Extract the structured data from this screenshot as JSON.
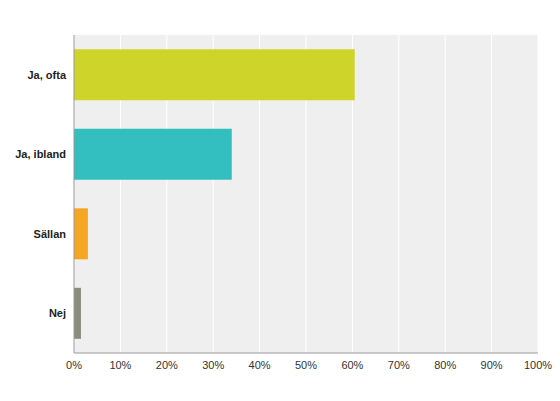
{
  "chart_data": {
    "type": "bar",
    "orientation": "horizontal",
    "categories": [
      "Ja, ofta",
      "Ja, ibland",
      "Sällan",
      "Nej"
    ],
    "values": [
      60.5,
      34,
      3,
      1.5
    ],
    "colors": [
      "#cfd42a",
      "#33bec0",
      "#f5a623",
      "#8a8c7c"
    ],
    "xlim": [
      0,
      100
    ],
    "xticks": [
      {
        "value": 0,
        "label": "0%"
      },
      {
        "value": 10,
        "label": "10%"
      },
      {
        "value": 20,
        "label": "20%"
      },
      {
        "value": 30,
        "label": "30%"
      },
      {
        "value": 40,
        "label": "40%"
      },
      {
        "value": 50,
        "label": "50%"
      },
      {
        "value": 60,
        "label": "60%"
      },
      {
        "value": 70,
        "label": "70%"
      },
      {
        "value": 80,
        "label": "80%"
      },
      {
        "value": 90,
        "label": "90%"
      },
      {
        "value": 100,
        "label": "100%"
      }
    ],
    "grid": true
  }
}
